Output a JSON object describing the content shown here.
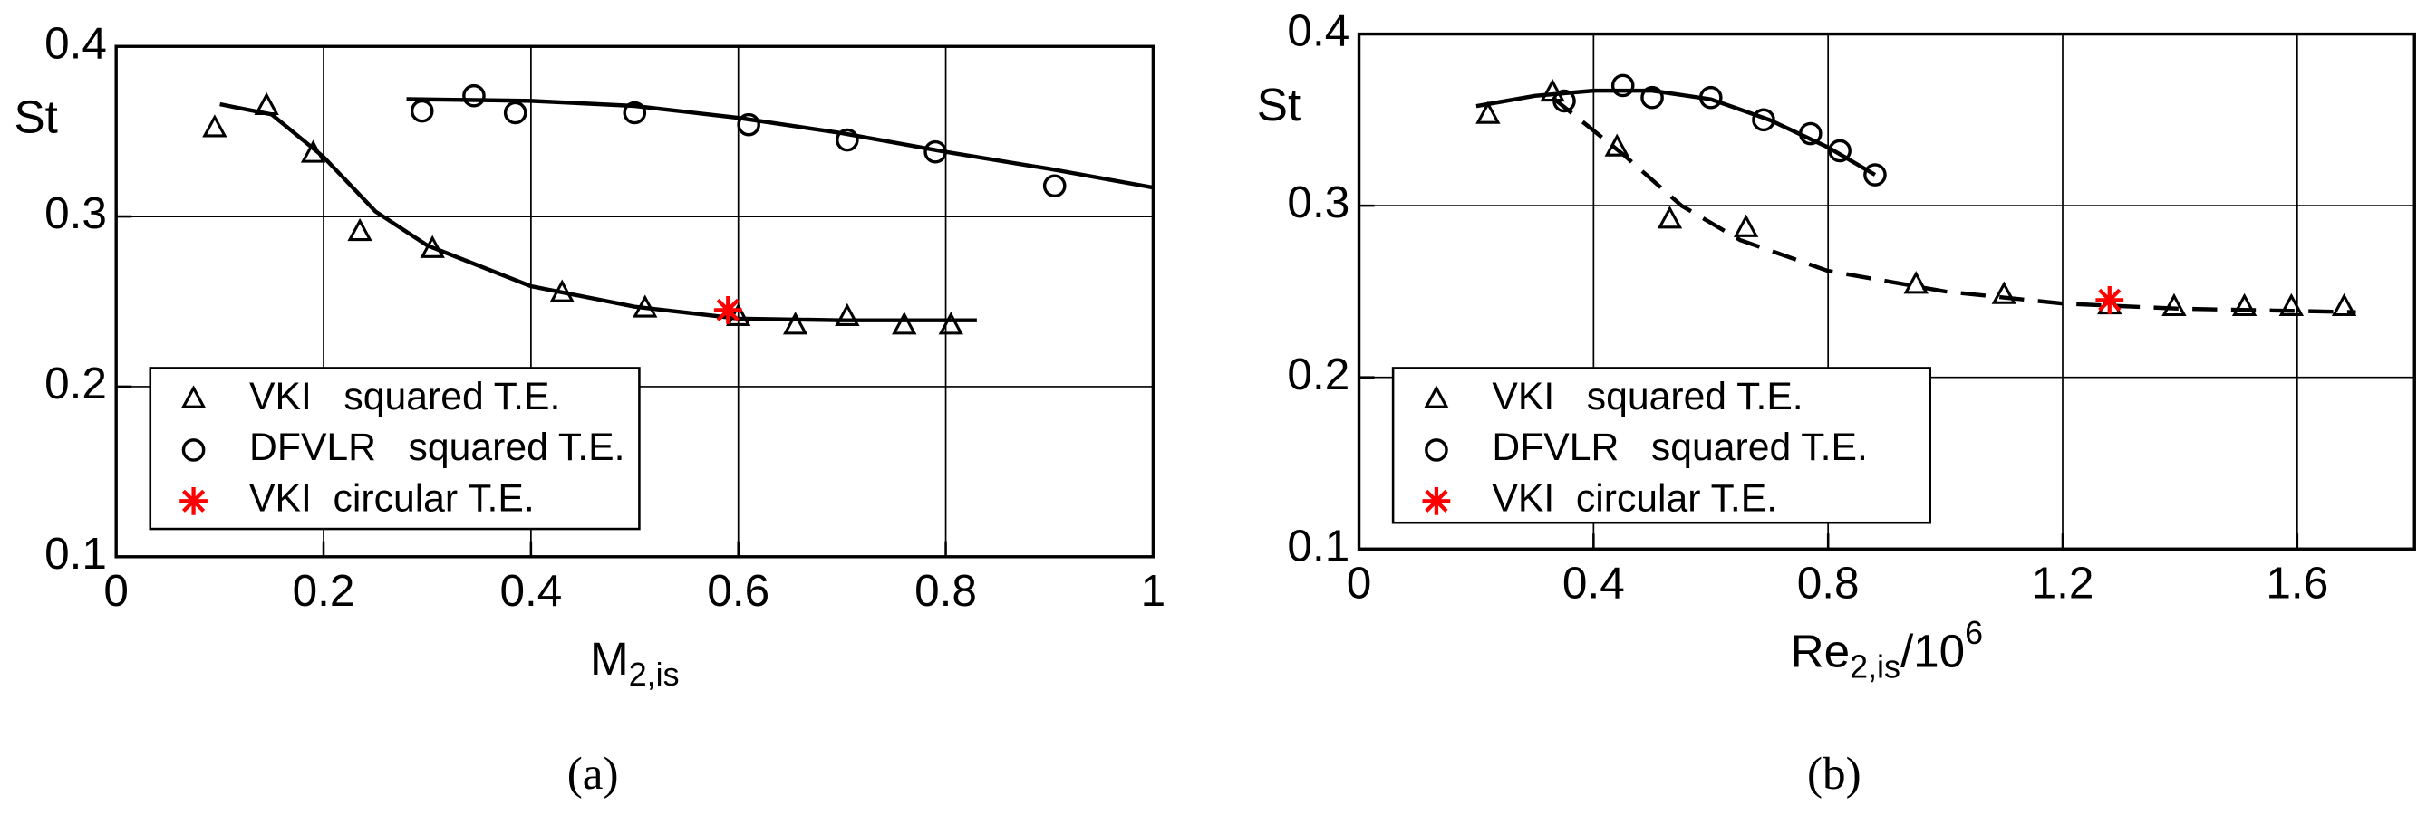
{
  "chart_data": [
    {
      "type": "scatter",
      "caption": "(a)",
      "ylabel": "St",
      "xlabel": "M",
      "xlabel_sub": "2,is",
      "xlim": [
        0,
        1
      ],
      "xticks": [
        0,
        0.2,
        0.4,
        0.6,
        0.8,
        1
      ],
      "ylim": [
        0.1,
        0.4
      ],
      "yticks": [
        0.1,
        0.2,
        0.3,
        0.4
      ],
      "grid": true,
      "series": [
        {
          "name": "VKI   squared T.E.",
          "marker": "triangle",
          "color": "#000000",
          "x": [
            0.095,
            0.145,
            0.19,
            0.235,
            0.305,
            0.43,
            0.51,
            0.6,
            0.655,
            0.705,
            0.76,
            0.805
          ],
          "values": [
            0.352,
            0.365,
            0.337,
            0.291,
            0.281,
            0.255,
            0.246,
            0.241,
            0.236,
            0.241,
            0.236,
            0.236
          ]
        },
        {
          "name": "DFVLR   squared T.E.",
          "marker": "circle",
          "color": "#000000",
          "x": [
            0.295,
            0.345,
            0.385,
            0.5,
            0.61,
            0.705,
            0.79,
            0.905
          ],
          "values": [
            0.362,
            0.371,
            0.361,
            0.361,
            0.354,
            0.345,
            0.338,
            0.318
          ]
        },
        {
          "name": "VKI  circular T.E.",
          "marker": "star",
          "color": "#ff0000",
          "x": [
            0.59
          ],
          "values": [
            0.245
          ]
        }
      ],
      "fits": [
        {
          "dash": false,
          "x": [
            0.1,
            0.15,
            0.2,
            0.25,
            0.3,
            0.4,
            0.5,
            0.6,
            0.7,
            0.83
          ],
          "values": [
            0.366,
            0.36,
            0.335,
            0.303,
            0.283,
            0.259,
            0.247,
            0.24,
            0.239,
            0.239
          ]
        },
        {
          "dash": false,
          "x": [
            0.28,
            0.4,
            0.5,
            0.6,
            0.7,
            0.8,
            0.9,
            1.0
          ],
          "values": [
            0.369,
            0.368,
            0.365,
            0.358,
            0.349,
            0.338,
            0.328,
            0.317
          ]
        }
      ]
    },
    {
      "type": "scatter",
      "caption": "(b)",
      "ylabel": "St",
      "xlabel": "Re",
      "xlabel_sub": "2,is",
      "xlabel_mid": "/10",
      "xlabel_sup": "6",
      "xlim": [
        0,
        1.8
      ],
      "xticks": [
        0,
        0.4,
        0.8,
        1.2,
        1.6
      ],
      "ylim": [
        0.1,
        0.4
      ],
      "yticks": [
        0.1,
        0.2,
        0.3,
        0.4
      ],
      "grid": true,
      "series": [
        {
          "name": "VKI   squared T.E.",
          "marker": "triangle",
          "color": "#000000",
          "x": [
            0.22,
            0.33,
            0.44,
            0.53,
            0.66,
            0.95,
            1.1,
            1.28,
            1.39,
            1.51,
            1.59,
            1.68
          ],
          "values": [
            0.353,
            0.366,
            0.334,
            0.292,
            0.287,
            0.254,
            0.248,
            0.242,
            0.241,
            0.241,
            0.241,
            0.241
          ]
        },
        {
          "name": "DFVLR   squared T.E.",
          "marker": "circle",
          "color": "#000000",
          "x": [
            0.35,
            0.45,
            0.5,
            0.6,
            0.69,
            0.77,
            0.82,
            0.88
          ],
          "values": [
            0.361,
            0.37,
            0.363,
            0.363,
            0.35,
            0.342,
            0.332,
            0.318
          ]
        },
        {
          "name": "VKI  circular T.E.",
          "marker": "star",
          "color": "#ff0000",
          "x": [
            1.28
          ],
          "values": [
            0.245
          ]
        }
      ],
      "fits": [
        {
          "dash": false,
          "x": [
            0.2,
            0.3,
            0.4,
            0.5,
            0.6,
            0.7,
            0.8,
            0.88
          ],
          "values": [
            0.358,
            0.364,
            0.367,
            0.367,
            0.362,
            0.35,
            0.334,
            0.318
          ]
        },
        {
          "dash": true,
          "x": [
            0.33,
            0.45,
            0.55,
            0.65,
            0.8,
            1.0,
            1.2,
            1.4,
            1.7
          ],
          "values": [
            0.363,
            0.33,
            0.3,
            0.28,
            0.262,
            0.25,
            0.243,
            0.24,
            0.238
          ]
        }
      ]
    }
  ]
}
